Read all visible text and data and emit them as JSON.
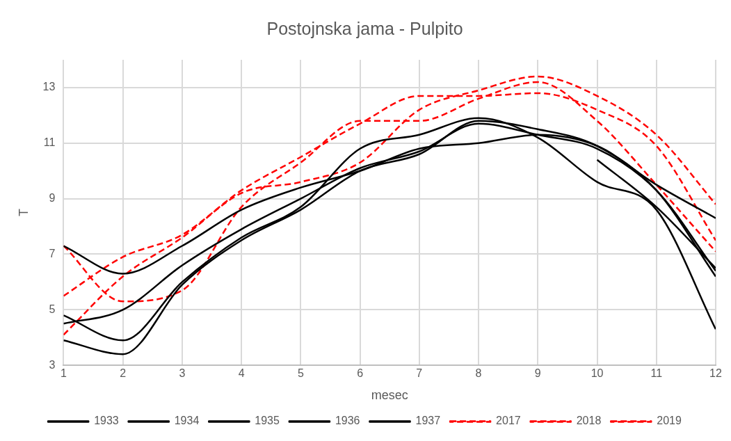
{
  "chart_data": {
    "type": "line",
    "title": "Postojnska jama - Pulpito",
    "xlabel": "mesec",
    "ylabel": "T",
    "x": [
      1,
      2,
      3,
      4,
      5,
      6,
      7,
      8,
      9,
      10,
      11,
      12
    ],
    "xlim": [
      1,
      12
    ],
    "xticks": [
      1,
      2,
      3,
      4,
      5,
      6,
      7,
      8,
      9,
      10,
      11,
      12
    ],
    "ylim": [
      3,
      14
    ],
    "yticks": [
      3,
      5,
      7,
      9,
      11,
      13
    ],
    "grid": true,
    "legend": "bottom",
    "marker": "none",
    "series": [
      {
        "name": "1933",
        "color": "#000000",
        "line_style": "solid",
        "values": [
          7.3,
          6.3,
          7.3,
          8.6,
          9.4,
          10.0,
          10.8,
          11.0,
          11.3,
          10.9,
          9.5,
          8.3
        ]
      },
      {
        "name": "1934",
        "color": "#000000",
        "line_style": "solid",
        "values": [
          4.5,
          5.0,
          6.6,
          7.9,
          9.0,
          10.1,
          10.7,
          11.7,
          11.3,
          10.8,
          9.3,
          6.4
        ]
      },
      {
        "name": "1935",
        "color": "#000000",
        "line_style": "solid",
        "values": [
          4.8,
          3.9,
          6.0,
          7.6,
          8.7,
          10.8,
          11.3,
          11.9,
          11.2,
          9.6,
          8.6,
          4.3
        ]
      },
      {
        "name": "1936",
        "color": "#000000",
        "line_style": "solid",
        "values": [
          3.9,
          3.4,
          5.9,
          7.5,
          8.6,
          10.0,
          10.6,
          11.8,
          11.5,
          10.9,
          9.3,
          6.2
        ]
      },
      {
        "name": "1937",
        "color": "#000000",
        "line_style": "solid",
        "values": [
          null,
          null,
          null,
          null,
          null,
          null,
          null,
          null,
          null,
          10.4,
          8.7,
          6.5
        ]
      },
      {
        "name": "2017",
        "color": "#ff0000",
        "line_style": "dashed",
        "values": [
          7.3,
          5.3,
          5.7,
          8.7,
          10.3,
          11.8,
          11.8,
          12.6,
          13.2,
          11.8,
          9.5,
          7.1
        ]
      },
      {
        "name": "2018",
        "color": "#ff0000",
        "line_style": "dashed",
        "values": [
          5.5,
          6.9,
          7.7,
          9.3,
          10.5,
          11.7,
          12.7,
          12.7,
          12.8,
          12.2,
          10.9,
          7.5
        ]
      },
      {
        "name": "2019",
        "color": "#ff0000",
        "line_style": "dashed",
        "values": [
          4.1,
          6.2,
          7.6,
          9.2,
          9.6,
          10.3,
          12.2,
          12.9,
          13.4,
          12.7,
          11.3,
          8.8
        ]
      }
    ]
  }
}
